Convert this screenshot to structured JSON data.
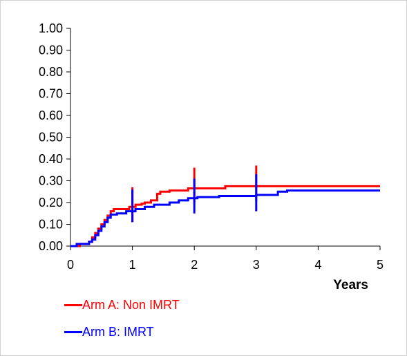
{
  "chart_data": {
    "type": "line",
    "step": true,
    "xlabel": "Years",
    "ylabel": "",
    "xlim": [
      0,
      5
    ],
    "ylim": [
      0,
      1
    ],
    "x_ticks": [
      "0",
      "1",
      "2",
      "3",
      "4",
      "5"
    ],
    "y_ticks": [
      "0.00",
      "0.10",
      "0.20",
      "0.30",
      "0.40",
      "0.50",
      "0.60",
      "0.70",
      "0.80",
      "0.90",
      "1.00"
    ],
    "grid": false,
    "legend_position": "bottom-left",
    "series": [
      {
        "name": "Arm A: Non IMRT",
        "color": "#ff0000",
        "x": [
          0,
          0.15,
          0.3,
          0.35,
          0.4,
          0.45,
          0.5,
          0.55,
          0.6,
          0.65,
          0.7,
          0.75,
          0.95,
          1.05,
          1.15,
          1.2,
          1.3,
          1.4,
          1.45,
          1.6,
          1.9,
          2.5,
          5
        ],
        "y": [
          0,
          0.01,
          0.02,
          0.04,
          0.06,
          0.08,
          0.1,
          0.12,
          0.14,
          0.16,
          0.17,
          0.17,
          0.18,
          0.19,
          0.195,
          0.2,
          0.21,
          0.24,
          0.25,
          0.255,
          0.265,
          0.275,
          0.275
        ],
        "ci_bars": [
          {
            "x": 1,
            "low": 0.11,
            "high": 0.27
          },
          {
            "x": 2,
            "low": 0.2,
            "high": 0.36
          },
          {
            "x": 3,
            "low": 0.21,
            "high": 0.37
          }
        ]
      },
      {
        "name": "Arm B: IMRT",
        "color": "#0000ff",
        "x": [
          0,
          0.1,
          0.3,
          0.35,
          0.4,
          0.45,
          0.5,
          0.55,
          0.6,
          0.65,
          0.75,
          0.9,
          1.05,
          1.2,
          1.35,
          1.6,
          1.75,
          1.9,
          2.05,
          2.4,
          3.0,
          3.35,
          3.5,
          5
        ],
        "y": [
          0,
          0.01,
          0.02,
          0.03,
          0.05,
          0.07,
          0.09,
          0.11,
          0.13,
          0.145,
          0.15,
          0.16,
          0.17,
          0.18,
          0.19,
          0.2,
          0.21,
          0.22,
          0.225,
          0.23,
          0.235,
          0.25,
          0.255,
          0.255
        ],
        "ci_bars": [
          {
            "x": 1,
            "low": 0.11,
            "high": 0.26
          },
          {
            "x": 2,
            "low": 0.15,
            "high": 0.31
          },
          {
            "x": 3,
            "low": 0.16,
            "high": 0.33
          }
        ]
      }
    ]
  }
}
